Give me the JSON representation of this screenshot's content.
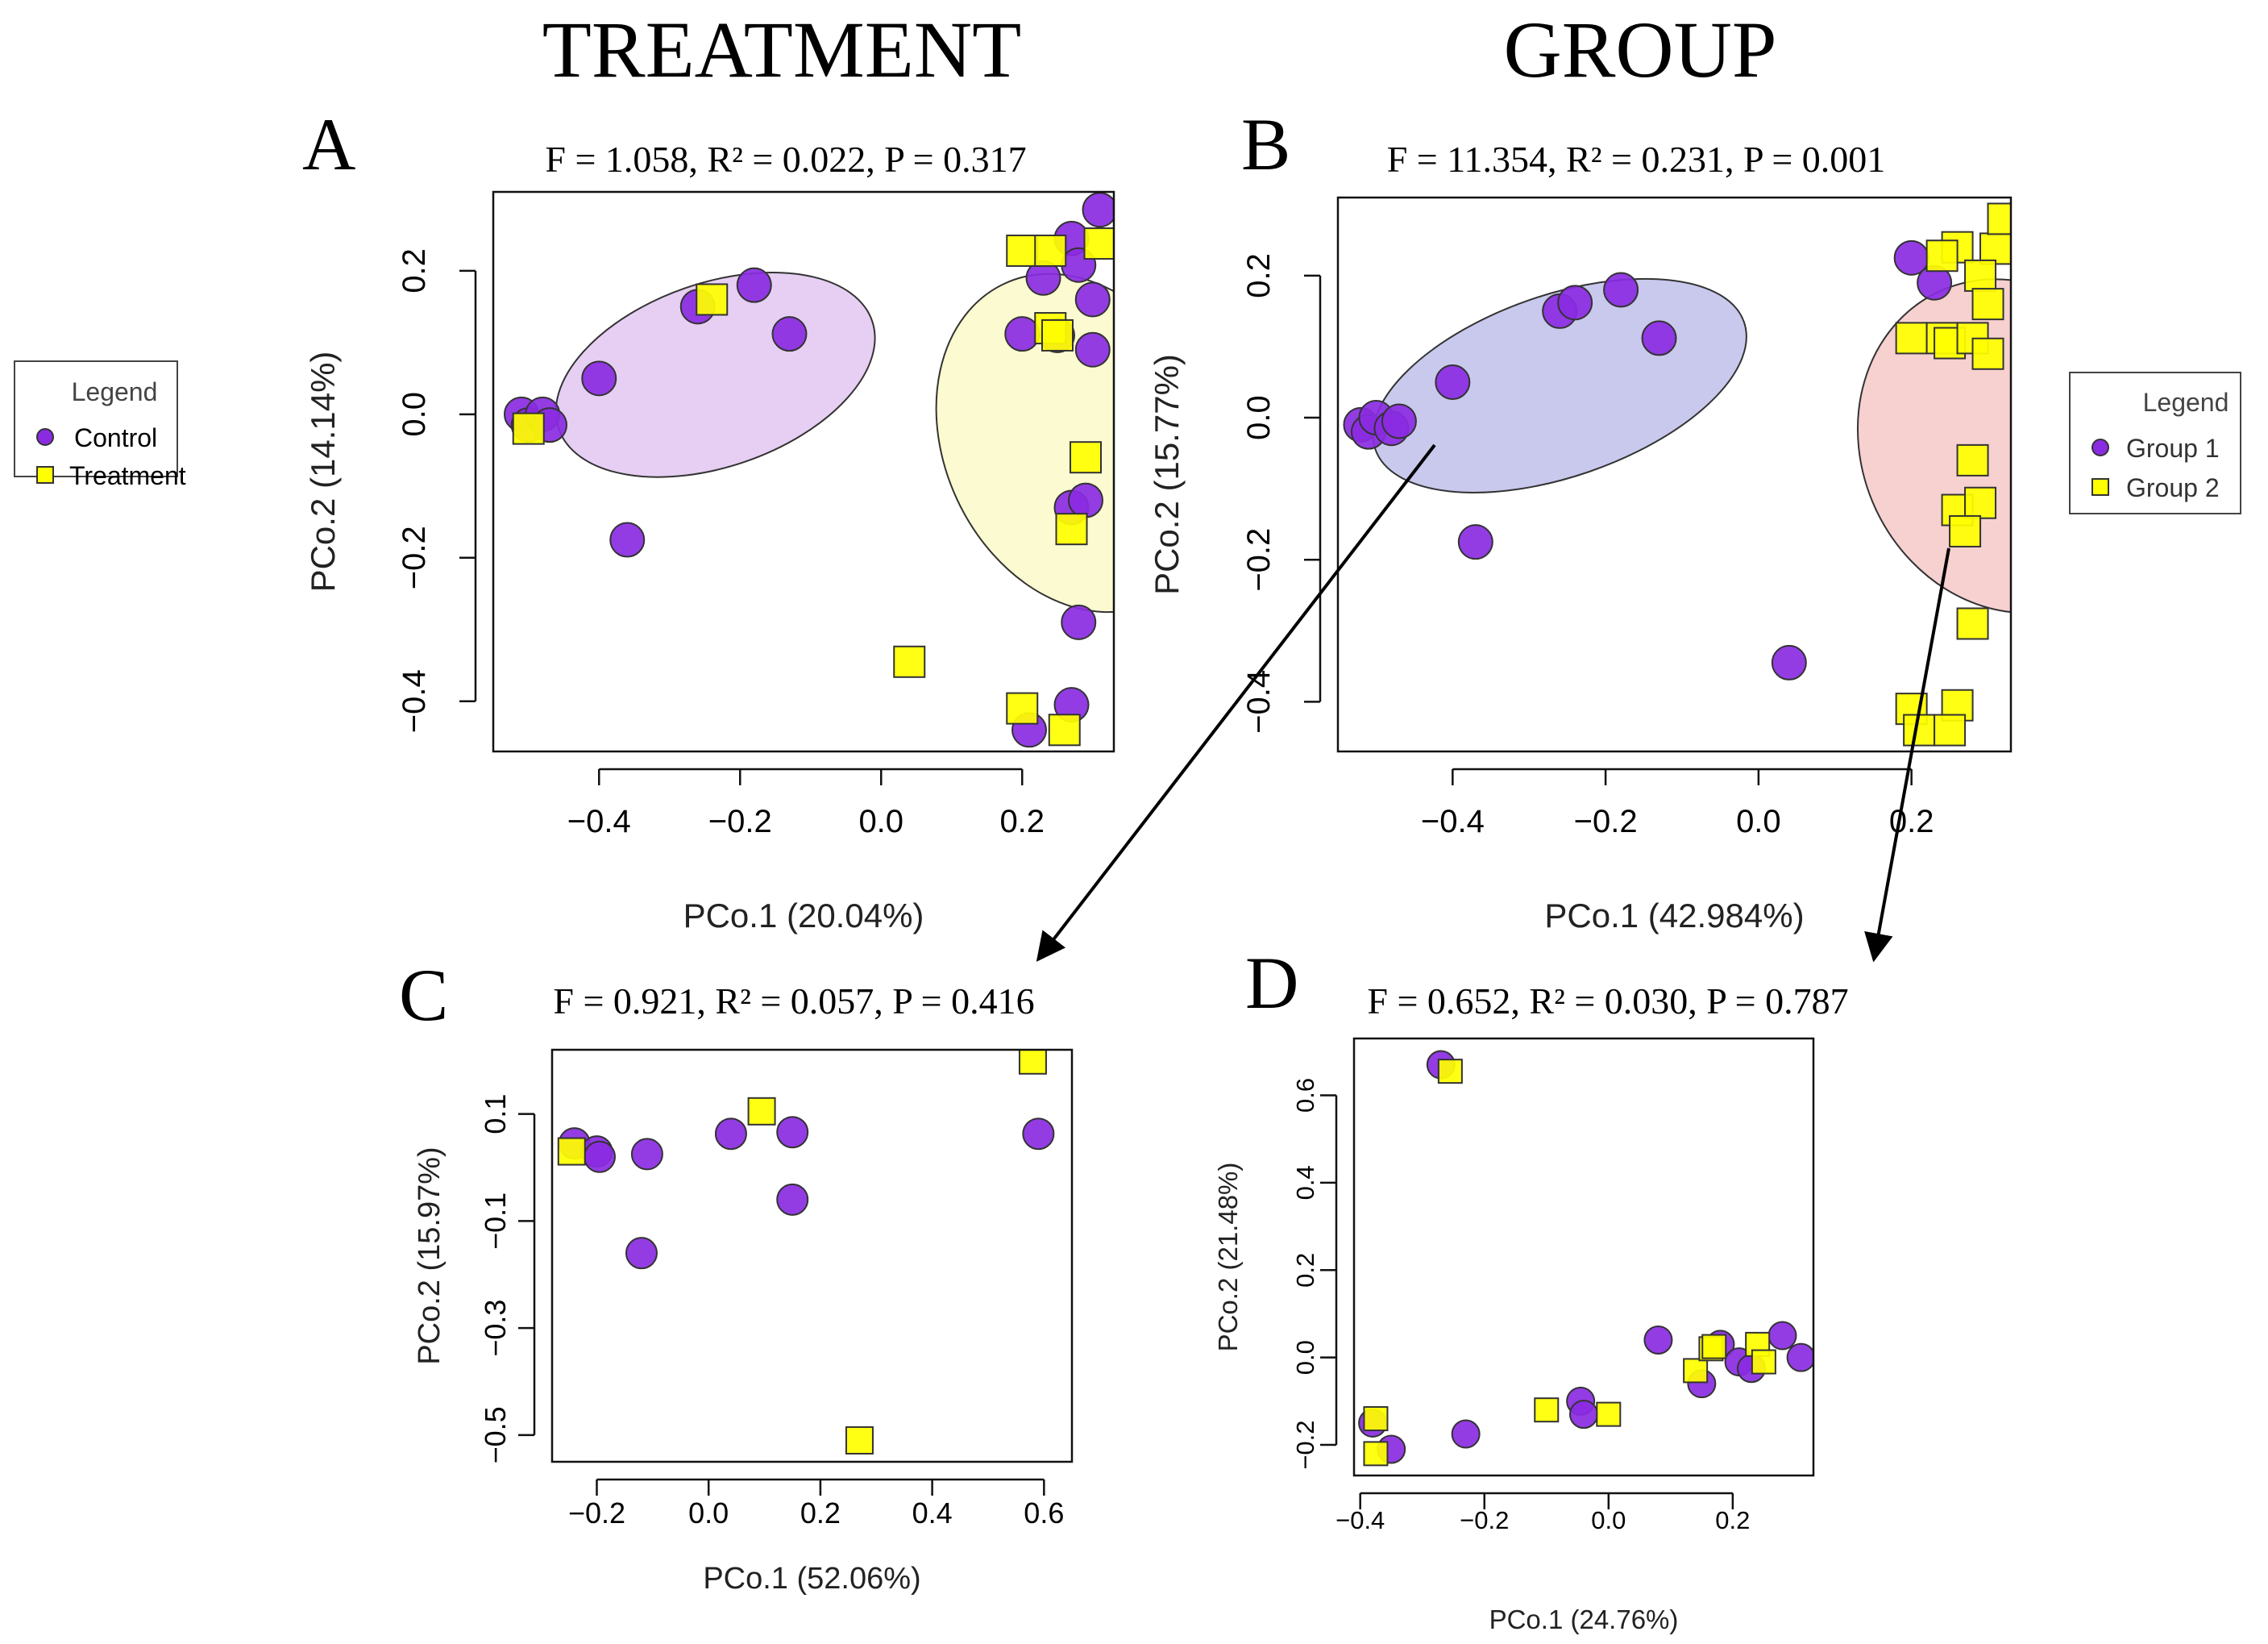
{
  "headings": {
    "treatment": "TREATMENT",
    "group": "GROUP"
  },
  "colors": {
    "purple": "#8a2be2",
    "yellow": "#ffff00",
    "purple_ellipse": "#e6cff3",
    "yellow_ellipse": "#fbfad0",
    "blue_ellipse": "#c9c9ee",
    "red_ellipse": "#f7d0d0"
  },
  "chart_data": [
    {
      "panel": "A",
      "type": "scatter",
      "stats_text": "F = 1.058,  R² = 0.022,  P =  0.317",
      "xlabel": "PCo.1 (20.04%)",
      "ylabel": "PCo.2 (14.14%)",
      "xlim": [
        -0.55,
        0.33
      ],
      "ylim": [
        -0.47,
        0.31
      ],
      "xticks": [
        -0.4,
        -0.2,
        0.0,
        0.2
      ],
      "xtick_labels": [
        "−0.4",
        "−0.2",
        "0.0",
        "0.2"
      ],
      "yticks": [
        0.2,
        0.0,
        -0.2,
        -0.4
      ],
      "ytick_labels": [
        "0.2",
        "0.0",
        "−0.2",
        "−0.4"
      ],
      "legend": {
        "title": "Legend",
        "entries": [
          "Control",
          "Treatment"
        ]
      },
      "ellipses": [
        {
          "cx": -0.235,
          "cy": 0.055,
          "rx": 0.235,
          "ry": 0.128,
          "angle": -19,
          "fill": "purple_ellipse"
        },
        {
          "cx": 0.28,
          "cy": -0.04,
          "rx": 0.19,
          "ry": 0.245,
          "angle": -25,
          "fill": "yellow_ellipse"
        }
      ],
      "series": [
        {
          "name": "Control",
          "marker": "circle",
          "color": "purple",
          "points": [
            [
              -0.51,
              0.0
            ],
            [
              -0.5,
              -0.015
            ],
            [
              -0.48,
              0.0
            ],
            [
              -0.47,
              -0.015
            ],
            [
              -0.4,
              0.05
            ],
            [
              -0.36,
              -0.175
            ],
            [
              -0.26,
              0.15
            ],
            [
              -0.18,
              0.18
            ],
            [
              -0.13,
              0.112
            ],
            [
              0.2,
              0.112
            ],
            [
              0.23,
              0.19
            ],
            [
              0.27,
              0.245
            ],
            [
              0.28,
              0.208
            ],
            [
              0.31,
              0.285
            ],
            [
              0.25,
              0.11
            ],
            [
              0.3,
              0.16
            ],
            [
              0.3,
              0.09
            ],
            [
              0.27,
              -0.13
            ],
            [
              0.29,
              -0.12
            ],
            [
              0.28,
              -0.29
            ],
            [
              0.27,
              -0.405
            ],
            [
              0.21,
              -0.44
            ]
          ]
        },
        {
          "name": "Treatment",
          "marker": "square",
          "color": "yellow",
          "points": [
            [
              -0.5,
              -0.02
            ],
            [
              -0.24,
              0.16
            ],
            [
              0.2,
              0.228
            ],
            [
              0.24,
              0.228
            ],
            [
              0.31,
              0.238
            ],
            [
              0.24,
              0.12
            ],
            [
              0.25,
              0.11
            ],
            [
              0.29,
              -0.06
            ],
            [
              0.27,
              -0.16
            ],
            [
              0.04,
              -0.345
            ],
            [
              0.2,
              -0.41
            ],
            [
              0.26,
              -0.44
            ]
          ]
        }
      ]
    },
    {
      "panel": "B",
      "type": "scatter",
      "stats_text": "F = 11.354, R² = 0.231,  P = 0.001",
      "xlabel": "PCo.1 (42.984%)",
      "ylabel": "PCo.2 (15.77%)",
      "xlim": [
        -0.55,
        0.33
      ],
      "ylim": [
        -0.47,
        0.31
      ],
      "xticks": [
        -0.4,
        -0.2,
        0.0,
        0.2
      ],
      "xtick_labels": [
        "−0.4",
        "−0.2",
        "0.0",
        "0.2"
      ],
      "yticks": [
        0.2,
        0.0,
        -0.2,
        -0.4
      ],
      "ytick_labels": [
        "0.2",
        "0.0",
        "−0.2",
        "−0.4"
      ],
      "legend": {
        "title": "Legend",
        "entries": [
          "Group 1",
          "Group 2"
        ]
      },
      "ellipses": [
        {
          "cx": -0.26,
          "cy": 0.045,
          "rx": 0.255,
          "ry": 0.128,
          "angle": -19,
          "fill": "blue_ellipse"
        },
        {
          "cx": 0.33,
          "cy": -0.04,
          "rx": 0.195,
          "ry": 0.24,
          "angle": -25,
          "fill": "red_ellipse"
        }
      ],
      "series": [
        {
          "name": "Group 1",
          "marker": "circle",
          "color": "purple",
          "points": [
            [
              -0.52,
              -0.01
            ],
            [
              -0.51,
              -0.02
            ],
            [
              -0.5,
              0.0
            ],
            [
              -0.48,
              -0.015
            ],
            [
              -0.47,
              -0.005
            ],
            [
              -0.4,
              0.05
            ],
            [
              -0.37,
              -0.175
            ],
            [
              -0.26,
              0.15
            ],
            [
              -0.24,
              0.162
            ],
            [
              -0.18,
              0.18
            ],
            [
              -0.13,
              0.112
            ],
            [
              0.2,
              0.225
            ],
            [
              0.23,
              0.19
            ],
            [
              0.04,
              -0.345
            ]
          ]
        },
        {
          "name": "Group 2",
          "marker": "square",
          "color": "yellow",
          "points": [
            [
              0.2,
              0.112
            ],
            [
              0.24,
              0.112
            ],
            [
              0.25,
              0.105
            ],
            [
              0.28,
              0.112
            ],
            [
              0.3,
              0.09
            ],
            [
              0.26,
              0.24
            ],
            [
              0.24,
              0.228
            ],
            [
              0.31,
              0.238
            ],
            [
              0.32,
              0.28
            ],
            [
              0.29,
              0.2
            ],
            [
              0.3,
              0.16
            ],
            [
              0.28,
              -0.06
            ],
            [
              0.26,
              -0.13
            ],
            [
              0.29,
              -0.12
            ],
            [
              0.27,
              -0.16
            ],
            [
              0.28,
              -0.29
            ],
            [
              0.26,
              -0.405
            ],
            [
              0.2,
              -0.41
            ],
            [
              0.21,
              -0.44
            ],
            [
              0.25,
              -0.44
            ]
          ]
        }
      ]
    },
    {
      "panel": "C",
      "type": "scatter",
      "stats_text": "F = 0.921, R² = 0.057,  P = 0.416",
      "xlabel": "PCo.1 (52.06%)",
      "ylabel": "PCo.2 (15.97%)",
      "xlim": [
        -0.28,
        0.65
      ],
      "ylim": [
        -0.55,
        0.22
      ],
      "xticks": [
        -0.2,
        0.0,
        0.2,
        0.4,
        0.6
      ],
      "xtick_labels": [
        "−0.2",
        "0.0",
        "0.2",
        "0.4",
        "0.6"
      ],
      "yticks": [
        0.1,
        -0.1,
        -0.3,
        -0.5
      ],
      "ytick_labels": [
        "0.1",
        "−0.1",
        "−0.3",
        "−0.5"
      ],
      "series": [
        {
          "name": "Control",
          "marker": "circle",
          "color": "purple",
          "points": [
            [
              -0.24,
              0.045
            ],
            [
              -0.2,
              0.03
            ],
            [
              -0.195,
              0.02
            ],
            [
              -0.11,
              0.025
            ],
            [
              -0.12,
              -0.16
            ],
            [
              0.04,
              0.063
            ],
            [
              0.15,
              0.066
            ],
            [
              0.15,
              -0.06
            ],
            [
              0.59,
              0.063
            ]
          ]
        },
        {
          "name": "Treatment",
          "marker": "square",
          "color": "yellow",
          "points": [
            [
              -0.245,
              0.03
            ],
            [
              0.095,
              0.105
            ],
            [
              0.58,
              0.2
            ],
            [
              0.27,
              -0.51
            ]
          ]
        }
      ]
    },
    {
      "panel": "D",
      "type": "scatter",
      "stats_text": "F = 0.652, R² = 0.030,  P = 0.787",
      "xlabel": "PCo.1 (24.76%)",
      "ylabel": "PCo.2 (21.48%)",
      "xlim": [
        -0.41,
        0.33
      ],
      "ylim": [
        -0.27,
        0.73
      ],
      "xticks": [
        -0.4,
        -0.2,
        0.0,
        0.2
      ],
      "xtick_labels": [
        "−0.4",
        "−0.2",
        "0.0",
        "0.2"
      ],
      "yticks": [
        0.6,
        0.4,
        0.2,
        0.0,
        -0.2
      ],
      "ytick_labels": [
        "0.6",
        "0.4",
        "0.2",
        "0.0",
        "−0.2"
      ],
      "series": [
        {
          "name": "Group 1",
          "marker": "circle",
          "color": "purple",
          "points": [
            [
              -0.27,
              0.67
            ],
            [
              -0.38,
              -0.15
            ],
            [
              -0.35,
              -0.21
            ],
            [
              -0.23,
              -0.175
            ],
            [
              -0.045,
              -0.1
            ],
            [
              -0.04,
              -0.13
            ],
            [
              0.08,
              0.04
            ],
            [
              0.15,
              -0.06
            ],
            [
              0.18,
              0.03
            ],
            [
              0.21,
              -0.01
            ],
            [
              0.23,
              -0.025
            ],
            [
              0.28,
              0.05
            ],
            [
              0.31,
              0.0
            ]
          ]
        },
        {
          "name": "Group 2",
          "marker": "square",
          "color": "yellow",
          "points": [
            [
              -0.255,
              0.655
            ],
            [
              -0.375,
              -0.14
            ],
            [
              -0.375,
              -0.22
            ],
            [
              -0.1,
              -0.12
            ],
            [
              0.0,
              -0.13
            ],
            [
              0.14,
              -0.03
            ],
            [
              0.165,
              0.02
            ],
            [
              0.17,
              0.025
            ],
            [
              0.24,
              0.03
            ],
            [
              0.25,
              -0.01
            ]
          ]
        }
      ]
    }
  ]
}
